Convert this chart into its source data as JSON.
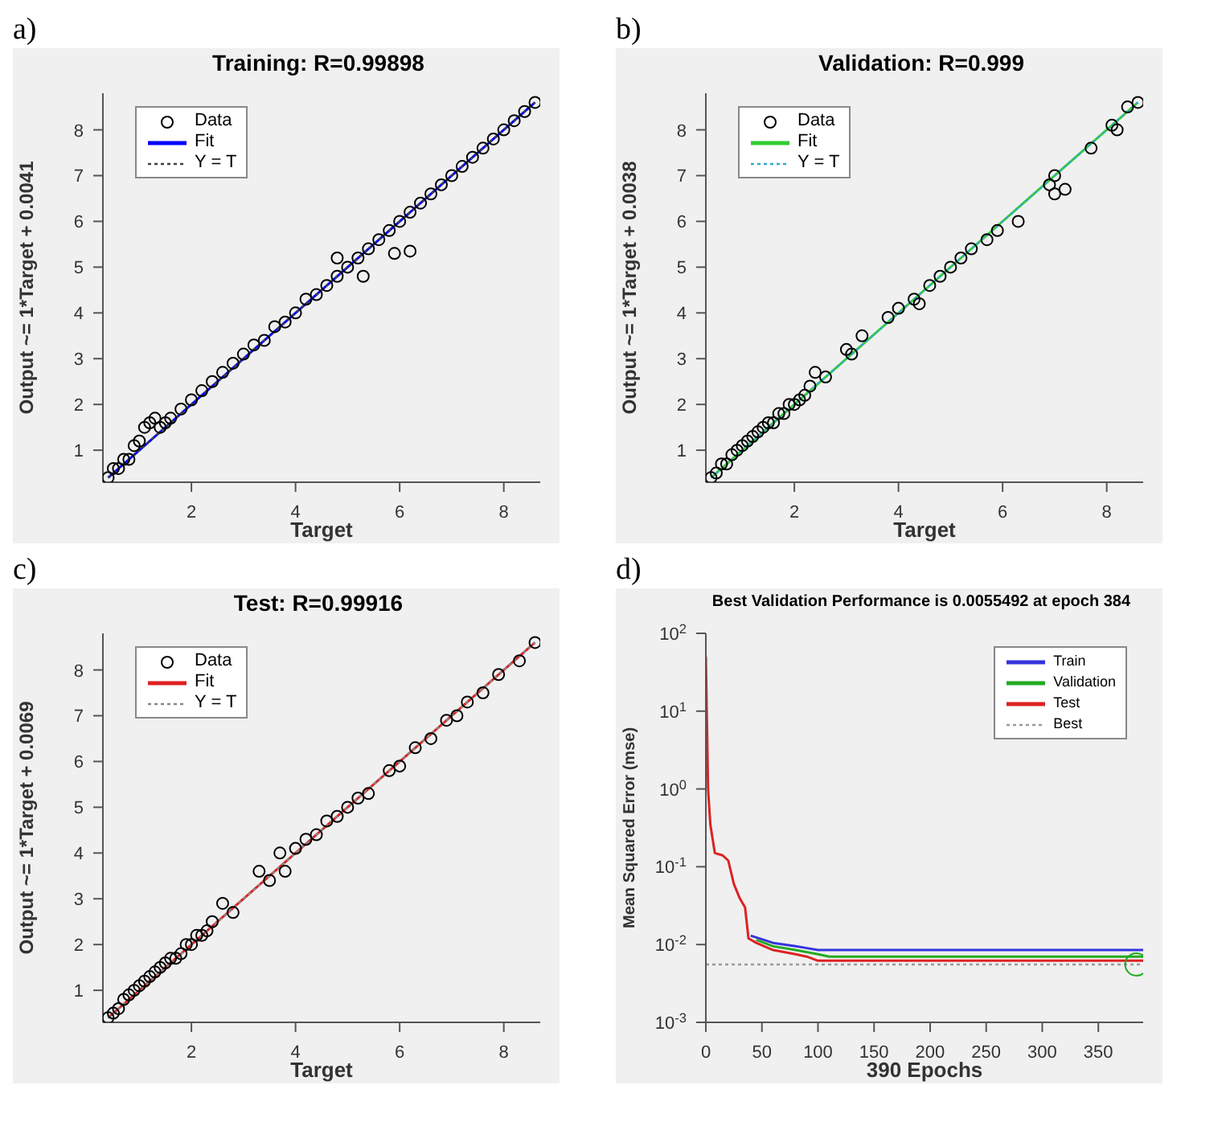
{
  "chart_data": [
    {
      "type": "scatter",
      "title": "Training: R=0.99898",
      "xlabel": "Target",
      "ylabel": "Output ~= 1*Target + 0.0041",
      "annotations": [
        "a)"
      ],
      "xlim": [
        0.3,
        8.7
      ],
      "ylim": [
        0.3,
        8.8
      ],
      "xticks": [
        2,
        4,
        6,
        8
      ],
      "yticks": [
        1,
        2,
        3,
        4,
        5,
        6,
        7,
        8
      ],
      "legend": "top left",
      "series": [
        {
          "name": "Data",
          "type": "scatter",
          "marker": "circle",
          "color": "#000000",
          "x": [
            0.4,
            0.5,
            0.6,
            0.7,
            0.8,
            0.9,
            1.0,
            1.1,
            1.2,
            1.3,
            1.4,
            1.5,
            1.6,
            1.8,
            2.0,
            2.2,
            2.4,
            2.6,
            2.8,
            3.0,
            3.2,
            3.4,
            3.6,
            3.8,
            4.0,
            4.2,
            4.4,
            4.6,
            4.8,
            5.0,
            5.2,
            5.4,
            5.6,
            5.8,
            6.0,
            6.2,
            6.4,
            6.6,
            6.8,
            7.0,
            7.2,
            7.4,
            7.6,
            7.8,
            8.0,
            8.2,
            8.4,
            8.6,
            4.8,
            5.3,
            5.9,
            6.2
          ],
          "values": [
            0.4,
            0.6,
            0.6,
            0.8,
            0.8,
            1.1,
            1.2,
            1.5,
            1.6,
            1.7,
            1.5,
            1.6,
            1.7,
            1.9,
            2.1,
            2.3,
            2.5,
            2.7,
            2.9,
            3.1,
            3.3,
            3.4,
            3.7,
            3.8,
            4.0,
            4.3,
            4.4,
            4.6,
            4.8,
            5.0,
            5.2,
            5.4,
            5.6,
            5.8,
            6.0,
            6.2,
            6.4,
            6.6,
            6.8,
            7.0,
            7.2,
            7.4,
            7.6,
            7.8,
            8.0,
            8.2,
            8.4,
            8.6,
            5.2,
            4.8,
            5.3,
            5.35
          ]
        },
        {
          "name": "Fit",
          "type": "line",
          "color": "#0000ff",
          "x": [
            0.4,
            8.6
          ],
          "values": [
            0.4,
            8.6
          ]
        },
        {
          "name": "Y = T",
          "type": "line",
          "line_style": "dotted",
          "color": "#404040",
          "x": [
            0.4,
            8.6
          ],
          "values": [
            0.4,
            8.6
          ]
        }
      ]
    },
    {
      "type": "scatter",
      "title": "Validation: R=0.999",
      "xlabel": "Target",
      "ylabel": "Output ~= 1*Target + 0.0038",
      "annotations": [
        "b)"
      ],
      "xlim": [
        0.3,
        8.7
      ],
      "ylim": [
        0.3,
        8.8
      ],
      "xticks": [
        2,
        4,
        6,
        8
      ],
      "yticks": [
        1,
        2,
        3,
        4,
        5,
        6,
        7,
        8
      ],
      "legend": "top left",
      "series": [
        {
          "name": "Data",
          "type": "scatter",
          "marker": "circle",
          "color": "#000000",
          "x": [
            0.4,
            0.5,
            0.6,
            0.7,
            0.8,
            0.9,
            1.0,
            1.1,
            1.2,
            1.3,
            1.4,
            1.5,
            1.6,
            1.7,
            1.8,
            1.9,
            2.0,
            2.1,
            2.2,
            2.3,
            2.4,
            2.6,
            3.0,
            3.1,
            3.3,
            3.8,
            4.0,
            4.3,
            4.4,
            4.6,
            4.8,
            5.0,
            5.2,
            5.4,
            5.7,
            5.9,
            6.3,
            6.9,
            7.0,
            7.0,
            7.2,
            7.7,
            8.1,
            8.2,
            8.4,
            8.6
          ],
          "values": [
            0.4,
            0.5,
            0.7,
            0.7,
            0.9,
            1.0,
            1.1,
            1.2,
            1.3,
            1.4,
            1.5,
            1.6,
            1.6,
            1.8,
            1.8,
            2.0,
            2.0,
            2.1,
            2.2,
            2.4,
            2.7,
            2.6,
            3.2,
            3.1,
            3.5,
            3.9,
            4.1,
            4.3,
            4.2,
            4.6,
            4.8,
            5.0,
            5.2,
            5.4,
            5.6,
            5.8,
            6.0,
            6.8,
            7.0,
            6.6,
            6.7,
            7.6,
            8.1,
            8.0,
            8.5,
            8.6
          ]
        },
        {
          "name": "Fit",
          "type": "line",
          "color": "#33cc33",
          "x": [
            0.4,
            8.6
          ],
          "values": [
            0.4,
            8.6
          ]
        },
        {
          "name": "Y = T",
          "type": "line",
          "line_style": "dotted",
          "color": "#33aacc",
          "x": [
            0.4,
            8.6
          ],
          "values": [
            0.4,
            8.6
          ]
        }
      ]
    },
    {
      "type": "scatter",
      "title": "Test: R=0.99916",
      "xlabel": "Target",
      "ylabel": "Output ~= 1*Target + 0.0069",
      "annotations": [
        "c)"
      ],
      "xlim": [
        0.3,
        8.7
      ],
      "ylim": [
        0.3,
        8.8
      ],
      "xticks": [
        2,
        4,
        6,
        8
      ],
      "yticks": [
        1,
        2,
        3,
        4,
        5,
        6,
        7,
        8
      ],
      "legend": "top left",
      "series": [
        {
          "name": "Data",
          "type": "scatter",
          "marker": "circle",
          "color": "#000000",
          "x": [
            0.4,
            0.5,
            0.6,
            0.7,
            0.8,
            0.9,
            1.0,
            1.1,
            1.2,
            1.3,
            1.4,
            1.5,
            1.6,
            1.7,
            1.8,
            1.9,
            2.0,
            2.1,
            2.2,
            2.3,
            2.4,
            2.6,
            2.8,
            3.3,
            3.5,
            3.7,
            3.8,
            4.0,
            4.2,
            4.4,
            4.6,
            4.8,
            5.0,
            5.2,
            5.4,
            5.8,
            6.0,
            6.3,
            6.6,
            6.9,
            7.1,
            7.3,
            7.6,
            7.9,
            8.3,
            8.6
          ],
          "values": [
            0.4,
            0.5,
            0.6,
            0.8,
            0.9,
            1.0,
            1.1,
            1.2,
            1.3,
            1.4,
            1.5,
            1.6,
            1.7,
            1.7,
            1.8,
            2.0,
            2.0,
            2.2,
            2.2,
            2.3,
            2.5,
            2.9,
            2.7,
            3.6,
            3.4,
            4.0,
            3.6,
            4.1,
            4.3,
            4.4,
            4.7,
            4.8,
            5.0,
            5.2,
            5.3,
            5.8,
            5.9,
            6.3,
            6.5,
            6.9,
            7.0,
            7.3,
            7.5,
            7.9,
            8.2,
            8.6
          ]
        },
        {
          "name": "Fit",
          "type": "line",
          "color": "#dd2222",
          "x": [
            0.4,
            8.6
          ],
          "values": [
            0.4,
            8.6
          ]
        },
        {
          "name": "Y = T",
          "type": "line",
          "line_style": "dotted",
          "color": "#888888",
          "x": [
            0.4,
            8.6
          ],
          "values": [
            0.4,
            8.6
          ]
        }
      ]
    },
    {
      "type": "line",
      "title": "Best Validation Performance is 0.0055492 at epoch 384",
      "xlabel": "390 Epochs",
      "ylabel": "Mean Squared Error  (mse)",
      "annotations": [
        "d)"
      ],
      "log": "y",
      "xlim": [
        0,
        390
      ],
      "ylim": [
        0.001,
        100
      ],
      "xticks": [
        0,
        50,
        100,
        150,
        200,
        250,
        300,
        350
      ],
      "yticks": [
        {
          "value": 0.001,
          "label": "10$^{-3}$"
        },
        {
          "value": 0.01,
          "label": "10$^{-2}$"
        },
        {
          "value": 0.1,
          "label": "10$^{-1}$"
        },
        {
          "value": 1,
          "label": "10$^{0}$"
        },
        {
          "value": 10,
          "label": "10$^{1}$"
        },
        {
          "value": 100,
          "label": "10$^{2}$"
        }
      ],
      "legend": "top right",
      "marker": "none",
      "series": [
        {
          "name": "Train",
          "type": "line",
          "color": "#3333dd",
          "x": [
            40,
            60,
            80,
            90,
            100,
            390
          ],
          "values": [
            0.013,
            0.0105,
            0.0095,
            0.009,
            0.0085,
            0.0085
          ]
        },
        {
          "name": "Validation",
          "type": "line",
          "color": "#22aa22",
          "x": [
            45,
            60,
            80,
            100,
            110,
            390
          ],
          "values": [
            0.0115,
            0.0095,
            0.0085,
            0.0075,
            0.007,
            0.007
          ]
        },
        {
          "name": "Test",
          "type": "line",
          "color": "#dd2222",
          "x": [
            0,
            2,
            4,
            8,
            15,
            20,
            25,
            30,
            35,
            38,
            45,
            60,
            80,
            90,
            100,
            110,
            390
          ],
          "values": [
            50,
            1,
            0.35,
            0.15,
            0.14,
            0.12,
            0.06,
            0.04,
            0.03,
            0.012,
            0.0105,
            0.0085,
            0.0075,
            0.007,
            0.0062,
            0.0062,
            0.0062
          ]
        },
        {
          "name": "Best",
          "type": "line",
          "line_style": "dotted",
          "color": "#999999",
          "x": [
            0,
            390
          ],
          "values": [
            0.0055492,
            0.0055492
          ]
        },
        {
          "type": "scatter",
          "marker": "circle",
          "color": "#22aa22",
          "x": [
            384
          ],
          "values": [
            0.0055492
          ]
        }
      ]
    }
  ]
}
